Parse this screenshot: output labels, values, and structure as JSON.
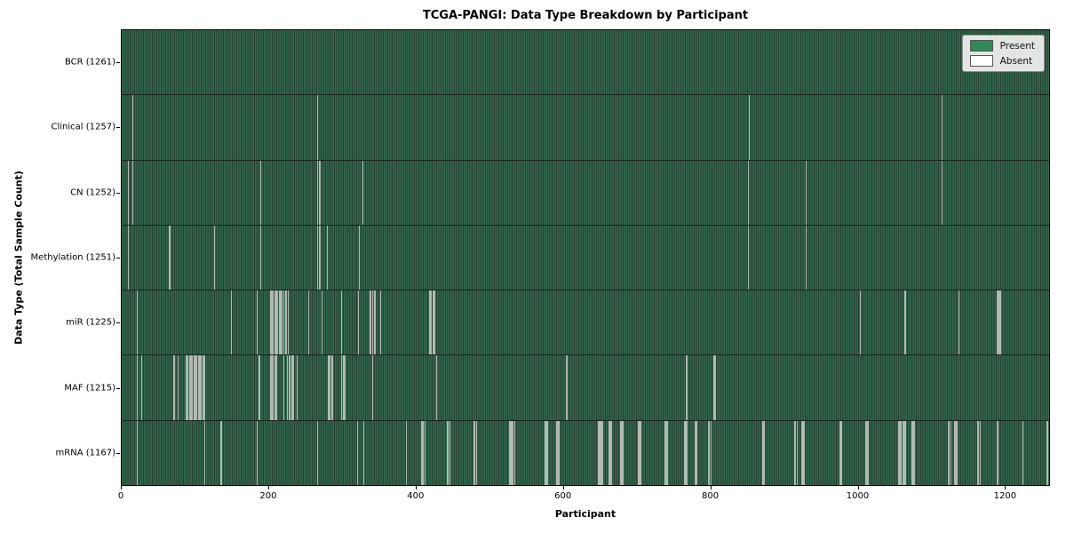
{
  "chart_data": {
    "type": "heatmap",
    "title": "TCGA-PANGI: Data Type Breakdown by Participant",
    "xlabel": "Participant",
    "ylabel": "Data Type (Total Sample Count)",
    "n_participants": 1261,
    "x_ticks": [
      0,
      200,
      400,
      600,
      800,
      1000,
      1200
    ],
    "grid": false,
    "legend": {
      "position": "upper right",
      "entries": [
        {
          "label": "Present",
          "color": "#2e8b57"
        },
        {
          "label": "Absent",
          "color": "#ffffff"
        }
      ]
    },
    "colors": {
      "present": "#2e8b57",
      "absent": "#ffffff",
      "stripe_light": "#33684d",
      "stripe_dark": "#24402f",
      "absent_line": "#b2bab2"
    },
    "rows": [
      {
        "label": "BCR (1261)",
        "data_type": "BCR",
        "present_count": 1261,
        "absent": []
      },
      {
        "label": "Clinical (1257)",
        "data_type": "Clinical",
        "present_count": 1257,
        "absent": [
          14,
          265,
          852,
          1114
        ]
      },
      {
        "label": "CN (1252)",
        "data_type": "CN",
        "present_count": 1252,
        "absent": [
          8,
          14,
          188,
          265,
          268,
          327,
          851,
          929,
          1114
        ]
      },
      {
        "label": "Methylation (1251)",
        "data_type": "Methylation",
        "present_count": 1251,
        "absent": [
          8,
          64,
          125,
          188,
          265,
          268,
          278,
          322,
          851,
          929
        ]
      },
      {
        "label": "miR (1225)",
        "data_type": "miR",
        "present_count": 1225,
        "absent": [
          20,
          148,
          183,
          201,
          203,
          205,
          207,
          209,
          211,
          213,
          215,
          217,
          219,
          222,
          225,
          253,
          271,
          298,
          321,
          337,
          340,
          343,
          351,
          418,
          420,
          422,
          424,
          1003,
          1064,
          1137,
          1189,
          1190,
          1191,
          1192,
          1193,
          1194
        ]
      },
      {
        "label": "MAF (1215)",
        "data_type": "MAF",
        "present_count": 1215,
        "absent": [
          20,
          26,
          70,
          75,
          87,
          89,
          91,
          93,
          95,
          97,
          99,
          101,
          103,
          105,
          107,
          109,
          111,
          112,
          186,
          201,
          203,
          205,
          207,
          209,
          219,
          224,
          226,
          228,
          230,
          232,
          237,
          280,
          282,
          284,
          286,
          298,
          300,
          302,
          340,
          427,
          604,
          766,
          767,
          804,
          805,
          806
        ]
      },
      {
        "label": "mRNA (1167)",
        "data_type": "mRNA",
        "present_count": 1167,
        "absent": [
          20,
          112,
          134,
          183,
          265,
          319,
          328,
          386,
          407,
          408,
          409,
          411,
          442,
          443,
          445,
          478,
          479,
          481,
          526,
          527,
          529,
          531,
          533,
          575,
          576,
          578,
          590,
          591,
          593,
          647,
          648,
          649,
          651,
          653,
          662,
          663,
          665,
          677,
          678,
          680,
          701,
          702,
          704,
          738,
          739,
          741,
          764,
          765,
          767,
          778,
          779,
          781,
          797,
          798,
          800,
          870,
          871,
          873,
          914,
          915,
          917,
          924,
          925,
          927,
          975,
          976,
          978,
          1011,
          1012,
          1014,
          1055,
          1056,
          1057,
          1058,
          1061,
          1062,
          1064,
          1073,
          1074,
          1076,
          1123,
          1124,
          1126,
          1131,
          1132,
          1134,
          1163,
          1164,
          1166,
          1189,
          1190,
          1224,
          1257,
          1258
        ]
      }
    ]
  }
}
